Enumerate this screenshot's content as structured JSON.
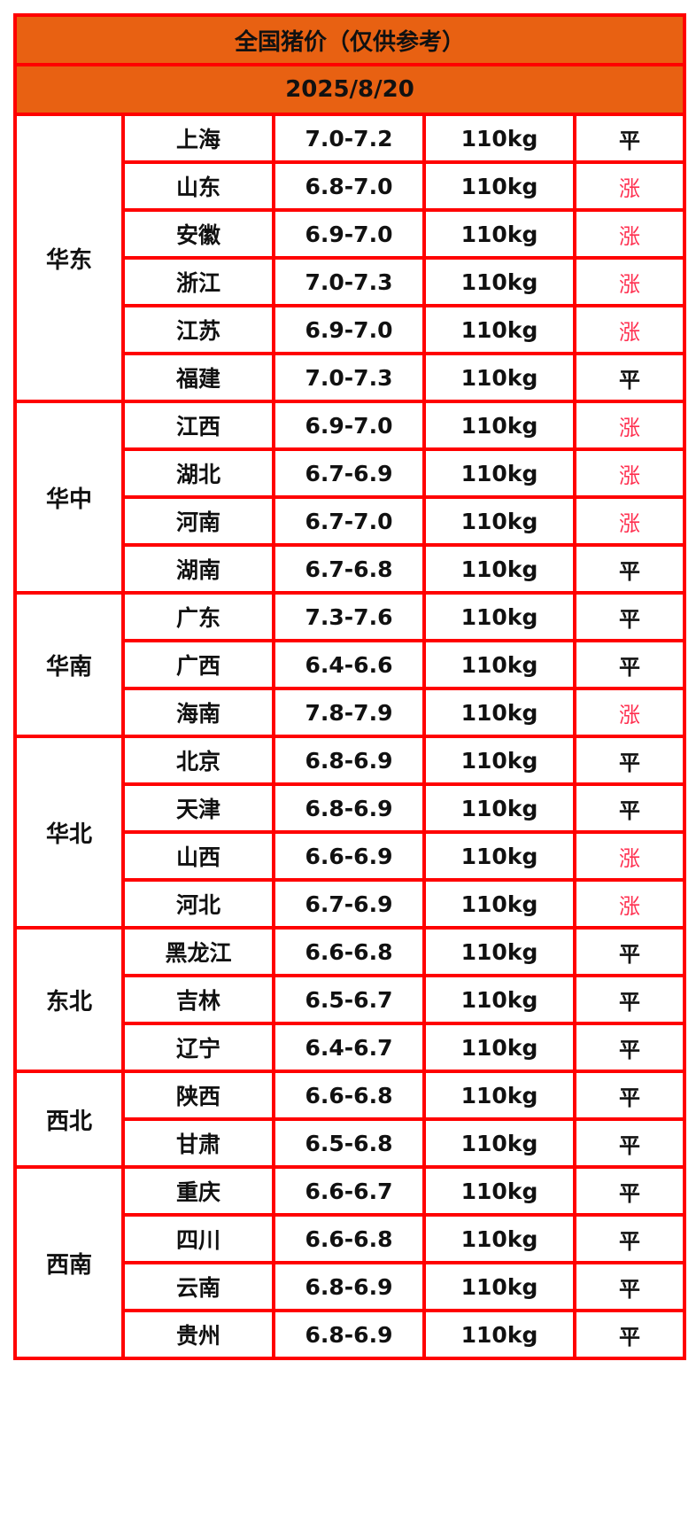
{
  "title": "全国猪价（仅供参考）",
  "date": "2025/8/20",
  "colors": {
    "header_bg": "#e86112",
    "border": "#ff0000",
    "rise": "#ff3050"
  },
  "regions": [
    {
      "name": "华东",
      "rows": [
        {
          "province": "上海",
          "price": "7.0-7.2",
          "weight": "110kg",
          "trend": "平"
        },
        {
          "province": "山东",
          "price": "6.8-7.0",
          "weight": "110kg",
          "trend": "涨"
        },
        {
          "province": "安徽",
          "price": "6.9-7.0",
          "weight": "110kg",
          "trend": "涨"
        },
        {
          "province": "浙江",
          "price": "7.0-7.3",
          "weight": "110kg",
          "trend": "涨"
        },
        {
          "province": "江苏",
          "price": "6.9-7.0",
          "weight": "110kg",
          "trend": "涨"
        },
        {
          "province": "福建",
          "price": "7.0-7.3",
          "weight": "110kg",
          "trend": "平"
        }
      ]
    },
    {
      "name": "华中",
      "rows": [
        {
          "province": "江西",
          "price": "6.9-7.0",
          "weight": "110kg",
          "trend": "涨"
        },
        {
          "province": "湖北",
          "price": "6.7-6.9",
          "weight": "110kg",
          "trend": "涨"
        },
        {
          "province": "河南",
          "price": "6.7-7.0",
          "weight": "110kg",
          "trend": "涨"
        },
        {
          "province": "湖南",
          "price": "6.7-6.8",
          "weight": "110kg",
          "trend": "平"
        }
      ]
    },
    {
      "name": "华南",
      "rows": [
        {
          "province": "广东",
          "price": "7.3-7.6",
          "weight": "110kg",
          "trend": "平"
        },
        {
          "province": "广西",
          "price": "6.4-6.6",
          "weight": "110kg",
          "trend": "平"
        },
        {
          "province": "海南",
          "price": "7.8-7.9",
          "weight": "110kg",
          "trend": "涨"
        }
      ]
    },
    {
      "name": "华北",
      "rows": [
        {
          "province": "北京",
          "price": "6.8-6.9",
          "weight": "110kg",
          "trend": "平"
        },
        {
          "province": "天津",
          "price": "6.8-6.9",
          "weight": "110kg",
          "trend": "平"
        },
        {
          "province": "山西",
          "price": "6.6-6.9",
          "weight": "110kg",
          "trend": "涨"
        },
        {
          "province": "河北",
          "price": "6.7-6.9",
          "weight": "110kg",
          "trend": "涨"
        }
      ]
    },
    {
      "name": "东北",
      "rows": [
        {
          "province": "黑龙江",
          "price": "6.6-6.8",
          "weight": "110kg",
          "trend": "平"
        },
        {
          "province": "吉林",
          "price": "6.5-6.7",
          "weight": "110kg",
          "trend": "平"
        },
        {
          "province": "辽宁",
          "price": "6.4-6.7",
          "weight": "110kg",
          "trend": "平"
        }
      ]
    },
    {
      "name": "西北",
      "rows": [
        {
          "province": "陕西",
          "price": "6.6-6.8",
          "weight": "110kg",
          "trend": "平"
        },
        {
          "province": "甘肃",
          "price": "6.5-6.8",
          "weight": "110kg",
          "trend": "平"
        }
      ]
    },
    {
      "name": "西南",
      "rows": [
        {
          "province": "重庆",
          "price": "6.6-6.7",
          "weight": "110kg",
          "trend": "平"
        },
        {
          "province": "四川",
          "price": "6.6-6.8",
          "weight": "110kg",
          "trend": "平"
        },
        {
          "province": "云南",
          "price": "6.8-6.9",
          "weight": "110kg",
          "trend": "平"
        },
        {
          "province": "贵州",
          "price": "6.8-6.9",
          "weight": "110kg",
          "trend": "平"
        }
      ]
    }
  ]
}
